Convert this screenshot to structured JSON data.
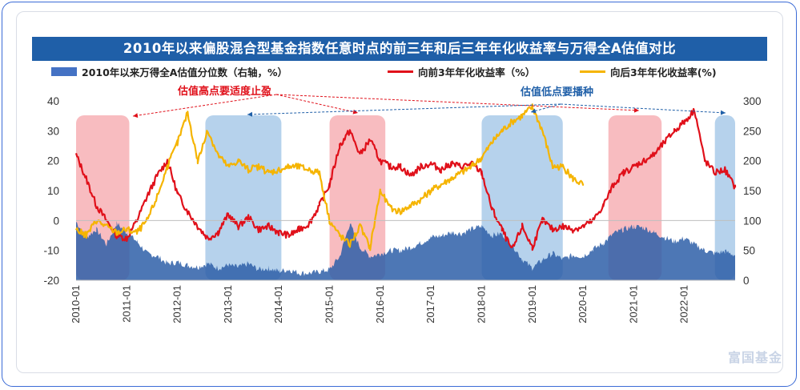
{
  "title": "2010年以来偏股混合型基金指数任意时点的前三年和后三年年化收益率与万得全A估值对比",
  "legend": {
    "area": "2010年以来万得全A估值分位数（右轴，%）",
    "red": "向前3年年化收益率（%）",
    "yellow": "向后3年年化收益率(%)"
  },
  "annotations": {
    "high": "估值高点要适度止盈",
    "low": "估值低点要播种"
  },
  "watermark": "富国基金",
  "colors": {
    "area": "#2e5fa8",
    "red": "#e0101a",
    "yellow": "#f5b400",
    "high_zone": "#f5a0a5",
    "low_zone": "#9dc3e6",
    "high_text": "#e0101a",
    "low_text": "#1f5fa8"
  },
  "chart_data": {
    "type": "line",
    "title": "2010年以来偏股混合型基金指数任意时点的前三年和后三年年化收益率与万得全A估值对比",
    "x_range": [
      2010.0,
      2023.0
    ],
    "x_ticks": [
      "2010-01",
      "2011-01",
      "2012-01",
      "2013-01",
      "2014-01",
      "2015-01",
      "2016-01",
      "2017-01",
      "2018-01",
      "2019-01",
      "2020-01",
      "2021-01",
      "2022-01"
    ],
    "y_left": {
      "ticks": [
        40,
        30,
        20,
        10,
        0,
        -10,
        -20
      ],
      "range": [
        -20,
        40
      ]
    },
    "y_right": {
      "ticks": [
        300,
        250,
        200,
        150,
        100,
        50,
        0
      ],
      "range": [
        0,
        300
      ]
    },
    "high_zones": [
      [
        2010.0,
        2011.05
      ],
      [
        2015.0,
        2016.1
      ],
      [
        2020.5,
        2021.55
      ]
    ],
    "low_zones": [
      [
        2012.55,
        2014.05
      ],
      [
        2018.0,
        2019.6
      ],
      [
        2022.6,
        2023.0
      ]
    ],
    "series": [
      {
        "name": "2010年以来万得全A估值分位数（右轴，%）",
        "axis": "right",
        "x": [
          2010.0,
          2010.2,
          2010.4,
          2010.6,
          2010.8,
          2011.0,
          2011.2,
          2011.4,
          2011.6,
          2011.8,
          2012.0,
          2012.2,
          2012.4,
          2012.6,
          2012.8,
          2013.0,
          2013.2,
          2013.4,
          2013.6,
          2013.8,
          2014.0,
          2014.2,
          2014.4,
          2014.6,
          2014.8,
          2015.0,
          2015.2,
          2015.4,
          2015.6,
          2015.8,
          2016.0,
          2016.2,
          2016.4,
          2016.6,
          2016.8,
          2017.0,
          2017.2,
          2017.4,
          2017.6,
          2017.8,
          2018.0,
          2018.2,
          2018.4,
          2018.6,
          2018.8,
          2019.0,
          2019.2,
          2019.4,
          2019.6,
          2019.8,
          2020.0,
          2020.2,
          2020.4,
          2020.6,
          2020.8,
          2021.0,
          2021.2,
          2021.4,
          2021.6,
          2021.8,
          2022.0,
          2022.2,
          2022.4,
          2022.6,
          2022.8,
          2023.0
        ],
        "values": [
          98,
          72,
          85,
          60,
          95,
          80,
          65,
          45,
          40,
          28,
          30,
          25,
          22,
          28,
          20,
          25,
          22,
          28,
          18,
          20,
          15,
          18,
          12,
          12,
          14,
          18,
          40,
          95,
          55,
          40,
          44,
          50,
          50,
          55,
          62,
          72,
          74,
          80,
          78,
          86,
          90,
          75,
          78,
          60,
          35,
          20,
          34,
          45,
          35,
          42,
          40,
          52,
          62,
          78,
          85,
          90,
          88,
          80,
          72,
          65,
          70,
          60,
          50,
          45,
          48,
          42
        ]
      },
      {
        "name": "向前3年年化收益率（%）",
        "axis": "left",
        "x": [
          2010.0,
          2010.2,
          2010.4,
          2010.6,
          2010.8,
          2011.0,
          2011.2,
          2011.4,
          2011.6,
          2011.8,
          2012.0,
          2012.2,
          2012.4,
          2012.6,
          2012.8,
          2013.0,
          2013.2,
          2013.4,
          2013.6,
          2013.8,
          2014.0,
          2014.2,
          2014.4,
          2014.6,
          2014.8,
          2015.0,
          2015.2,
          2015.4,
          2015.6,
          2015.8,
          2016.0,
          2016.2,
          2016.4,
          2016.6,
          2016.8,
          2017.0,
          2017.2,
          2017.4,
          2017.6,
          2017.8,
          2018.0,
          2018.2,
          2018.4,
          2018.6,
          2018.8,
          2019.0,
          2019.2,
          2019.4,
          2019.6,
          2019.8,
          2020.0,
          2020.2,
          2020.4,
          2020.6,
          2020.8,
          2021.0,
          2021.2,
          2021.4,
          2021.6,
          2021.8,
          2022.0,
          2022.2,
          2022.4,
          2022.6,
          2022.8,
          2023.0
        ],
        "values": [
          22,
          14,
          5,
          0,
          -5,
          -6,
          0,
          8,
          15,
          20,
          9,
          3,
          -2,
          -6,
          -4,
          2,
          -2,
          1,
          -3,
          -2,
          -4,
          -5,
          -3,
          -1,
          5,
          12,
          25,
          30,
          22,
          27,
          20,
          18,
          18,
          15,
          18,
          19,
          17,
          19,
          18,
          19,
          16,
          4,
          -3,
          -10,
          -2,
          -9,
          0,
          -3,
          -2,
          -3,
          -2,
          0,
          5,
          12,
          16,
          18,
          20,
          22,
          26,
          30,
          33,
          37,
          20,
          16,
          17,
          11
        ]
      },
      {
        "name": "向后3年年化收益率(%)",
        "axis": "left",
        "x": [
          2010.0,
          2010.2,
          2010.4,
          2010.6,
          2010.8,
          2011.0,
          2011.2,
          2011.4,
          2011.6,
          2011.8,
          2012.0,
          2012.2,
          2012.4,
          2012.6,
          2012.8,
          2013.0,
          2013.2,
          2013.4,
          2013.6,
          2013.8,
          2014.0,
          2014.2,
          2014.4,
          2014.6,
          2014.8,
          2015.0,
          2015.2,
          2015.4,
          2015.6,
          2015.8,
          2016.0,
          2016.2,
          2016.4,
          2016.6,
          2016.8,
          2017.0,
          2017.2,
          2017.4,
          2017.6,
          2017.8,
          2018.0,
          2018.2,
          2018.4,
          2018.6,
          2018.8,
          2019.0,
          2019.2,
          2019.4,
          2019.6,
          2019.8,
          2020.0
        ],
        "values": [
          -3,
          -5,
          0,
          -2,
          -4,
          -3,
          -4,
          0,
          8,
          18,
          26,
          36,
          20,
          30,
          22,
          18,
          20,
          17,
          18,
          16,
          17,
          18,
          18,
          17,
          16,
          0,
          -5,
          -8,
          -2,
          -9,
          10,
          4,
          3,
          5,
          7,
          10,
          12,
          14,
          16,
          18,
          21,
          26,
          30,
          33,
          35,
          38,
          30,
          18,
          18,
          14,
          12
        ]
      }
    ]
  }
}
